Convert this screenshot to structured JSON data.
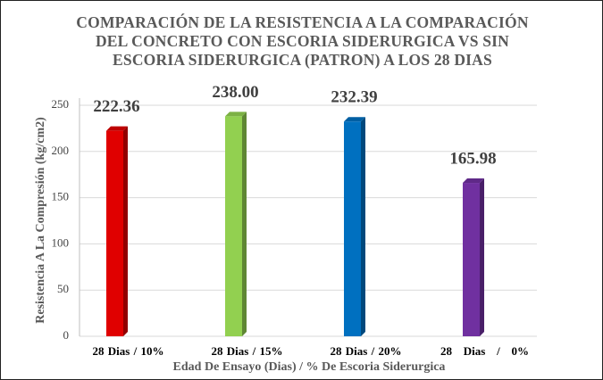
{
  "chart_data": {
    "type": "bar",
    "title": "COMPARACIÓN DE LA RESISTENCIA  A LA COMPARACIÓN DEL CONCRETO CON ESCORIA SIDERURGICA VS SIN ESCORIA SIDERURGICA (PATRON) A LOS 28 DIAS",
    "categories": [
      "28 Dias / 10%",
      "28 Dias / 15%",
      "28 Dias / 20%",
      "28   Dias   /   0%"
    ],
    "values": [
      222.36,
      238,
      232.39,
      165.98
    ],
    "value_labels": [
      "222.36",
      "238.00",
      "232.39",
      "165.98"
    ],
    "colors": [
      "#e00000",
      "#92d050",
      "#0070c0",
      "#7030a0"
    ],
    "x_label": "Edad De Ensayo (Dias) / % De Escoria Siderurgica",
    "y_label": "Resistencia A La Compresión (kg/cm2)",
    "ylim": [
      0,
      250
    ],
    "yticks": [
      0,
      50,
      100,
      150,
      200,
      250
    ],
    "grid": true
  }
}
